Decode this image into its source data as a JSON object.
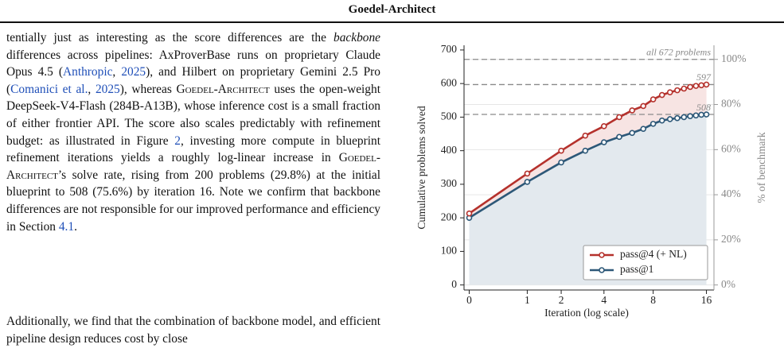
{
  "header": {
    "title": "Goedel-Architect"
  },
  "paragraphs": [
    [
      "tentially just as interesting as the score differences are the ",
      "backbone",
      " differences across pipelines: AxProverBase runs on proprietary Claude Opus 4.5 (",
      "Anthropic",
      ", ",
      "2025",
      "), and Hilbert on proprietary Gemini 2.5 Pro (",
      "Comanici et al.",
      ", ",
      "2025",
      "), whereas ",
      "Goedel-Architect",
      " uses the open-weight DeepSeek-V4-Flash (284B-A13B), whose inference cost is a small fraction of either frontier API. The score also scales predictably with refinement budget: as illustrated in Figure ",
      "2",
      ", investing more compute in blueprint refinement iterations yields a roughly log-linear increase in ",
      "Goedel-Architect",
      "’s solve rate, rising from 200 problems (29.8%) at the initial blueprint to 508 (75.6%) by iteration 16. Note we confirm that backbone differences are not responsible for our improved performance and efficiency in Section ",
      "4.1",
      "."
    ],
    [
      "Additionally, we find that the combination of backbone model, and efficient pipeline design reduces cost by close"
    ]
  ],
  "chart_data": {
    "type": "line",
    "xlabel": "Iteration  (log scale)",
    "ylabel": "Cumulative problems solved",
    "y2label": "% of benchmark",
    "xscale": "log",
    "x": [
      0,
      1,
      2,
      3,
      4,
      5,
      6,
      7,
      8,
      9,
      10,
      11,
      12,
      13,
      14,
      15,
      16
    ],
    "xlim": [
      -0.06,
      17.6
    ],
    "xticks": [
      0,
      1,
      2,
      4,
      8,
      16
    ],
    "ylim": [
      -15,
      714
    ],
    "yticks": [
      0,
      100,
      200,
      300,
      400,
      500,
      600,
      700
    ],
    "y2lim": [
      -2.23,
      106.25
    ],
    "y2ticks": [
      {
        "value": 0,
        "label": "0%"
      },
      {
        "value": 20,
        "label": "20%"
      },
      {
        "value": 40,
        "label": "40%"
      },
      {
        "value": 60,
        "label": "60%"
      },
      {
        "value": 80,
        "label": "80%"
      },
      {
        "value": 100,
        "label": "100%"
      }
    ],
    "grid": true,
    "legend": "lower right",
    "series": [
      {
        "name": "pass@4 (+ NL)",
        "color": "#b5312c",
        "fill": "#f7e4e3",
        "values": [
          213,
          332,
          400,
          445,
          473,
          500,
          520,
          533,
          553,
          566,
          574,
          580,
          585,
          590,
          593,
          595,
          597
        ]
      },
      {
        "name": "pass@1",
        "color": "#2d5878",
        "fill": "#e3e9ee",
        "values": [
          200,
          307,
          365,
          400,
          425,
          441,
          453,
          465,
          480,
          490,
          494,
          497,
          500,
          503,
          505,
          507,
          508
        ]
      }
    ],
    "reference_lines": [
      {
        "value": 672,
        "label": "all 672 problems"
      },
      {
        "value": 597,
        "label": "597"
      },
      {
        "value": 508,
        "label": "508"
      }
    ]
  }
}
